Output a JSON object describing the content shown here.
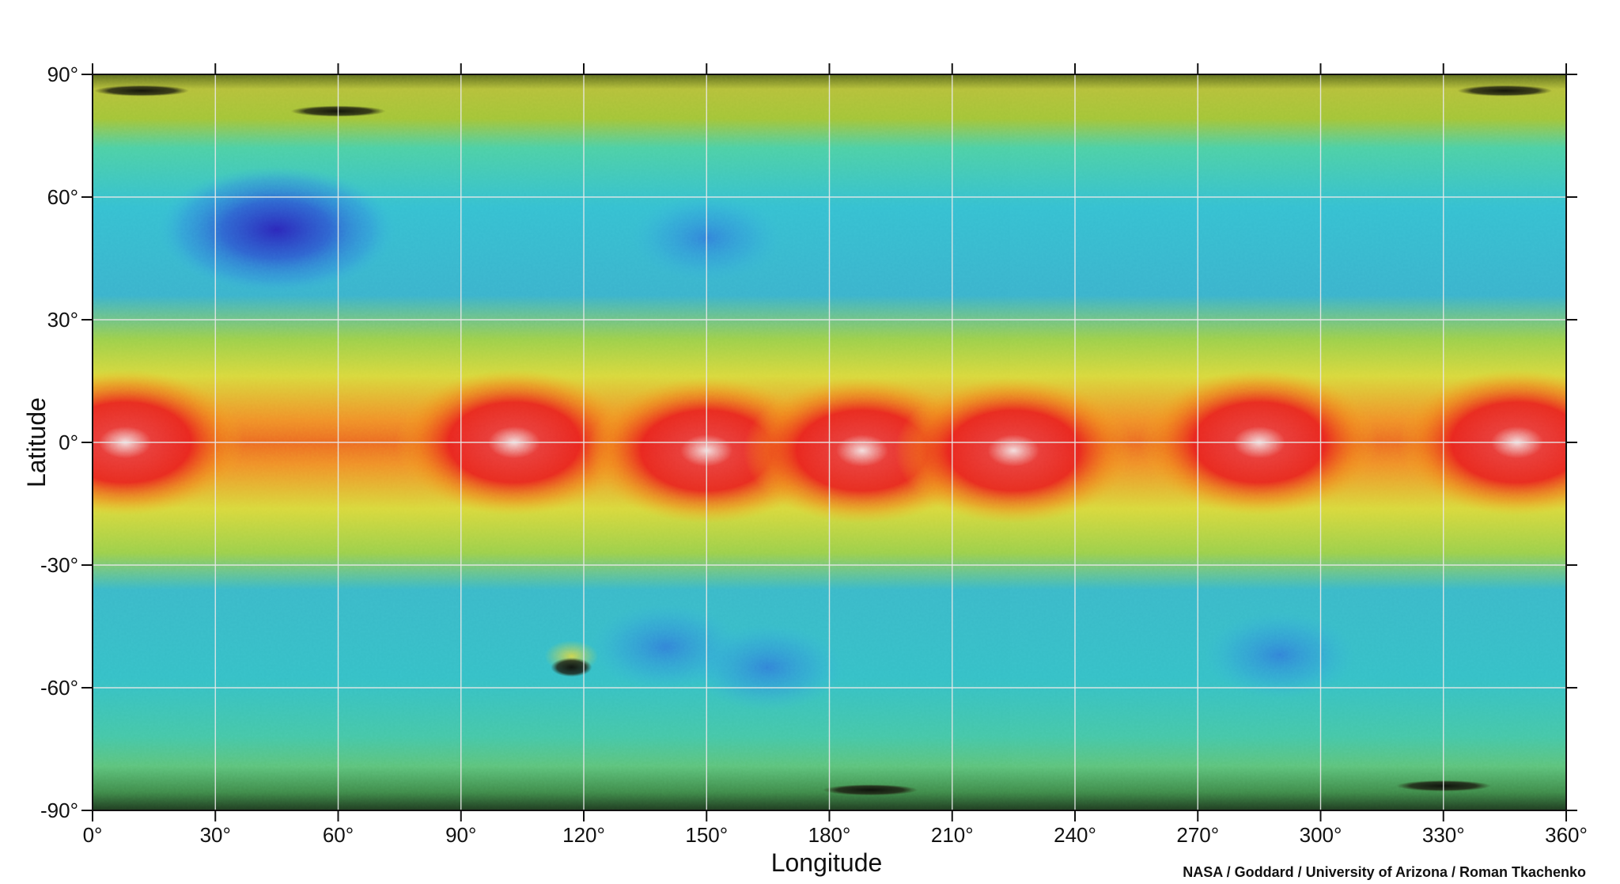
{
  "map": {
    "projection": "equirectangular",
    "x_axis": {
      "title": "Longitude",
      "range": [
        0,
        360
      ],
      "ticks": [
        0,
        30,
        60,
        90,
        120,
        150,
        180,
        210,
        240,
        270,
        300,
        330,
        360
      ],
      "tick_labels": [
        "0°",
        "30°",
        "60°",
        "90°",
        "120°",
        "150°",
        "180°",
        "210°",
        "240°",
        "270°",
        "300°",
        "330°",
        "360°"
      ]
    },
    "y_axis": {
      "title": "Latitude",
      "range": [
        -90,
        90
      ],
      "ticks": [
        90,
        60,
        30,
        0,
        -30,
        -60,
        -90
      ],
      "tick_labels": [
        "90°",
        "60°",
        "30°",
        "0°",
        "-30°",
        "-60°",
        "-90°"
      ]
    },
    "grid": true,
    "grid_color": "#e8e8e8",
    "colormap": [
      "#2a1fb8",
      "#2f7fe0",
      "#36c6d6",
      "#3fd3a8",
      "#d9e03a",
      "#f07a1a",
      "#e81e1e",
      "#f3dede"
    ],
    "features": {
      "equatorial_high_regions": [
        {
          "lon": 8,
          "lat": 0
        },
        {
          "lon": 103,
          "lat": 0
        },
        {
          "lon": 150,
          "lat": -2
        },
        {
          "lon": 188,
          "lat": -2
        },
        {
          "lon": 225,
          "lat": -2
        },
        {
          "lon": 285,
          "lat": 0
        },
        {
          "lon": 348,
          "lat": 0
        }
      ],
      "low_regions": [
        {
          "lon": 45,
          "lat": 52
        },
        {
          "lon": 150,
          "lat": 50
        },
        {
          "lon": 140,
          "lat": -50
        },
        {
          "lon": 165,
          "lat": -55
        },
        {
          "lon": 290,
          "lat": -52
        }
      ],
      "dark_features": [
        {
          "lon": 117,
          "lat": -55
        },
        {
          "lon": 12,
          "lat": 86
        },
        {
          "lon": 60,
          "lat": 81
        },
        {
          "lon": 190,
          "lat": -85
        },
        {
          "lon": 330,
          "lat": -84
        },
        {
          "lon": 345,
          "lat": 86
        }
      ]
    },
    "credit": "NASA / Goddard / University of Arizona / Roman Tkachenko"
  }
}
